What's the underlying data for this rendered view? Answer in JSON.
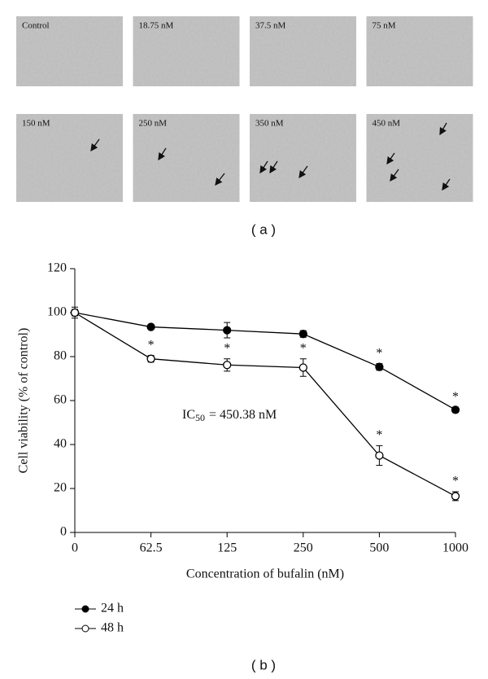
{
  "panel_a": {
    "label": "( a )",
    "images": [
      "Control",
      "18.75 nM",
      "37.5 nM",
      "75 nM",
      "150 nM",
      "250 nM",
      "350 nM",
      "450 nM"
    ]
  },
  "chart_data": {
    "type": "line",
    "panel_label": "( b )",
    "x_label": "Concentration of bufalin (nM)",
    "y_label": "Cell viability (% of control)",
    "annotation": {
      "main": "IC",
      "sub": "50",
      "rest": "= 450.38 nM"
    },
    "categories": [
      "0",
      "62.5",
      "125",
      "250",
      "500",
      "1000"
    ],
    "ylim": [
      0,
      120
    ],
    "yticks": [
      0,
      20,
      40,
      60,
      80,
      100,
      120
    ],
    "grid": false,
    "series": [
      {
        "name": "24 h",
        "color": "#000000",
        "marker_fill": "#000000",
        "values": [
          100,
          93.5,
          92,
          90.3,
          75.3,
          55.8
        ],
        "errors": [
          1.5,
          1,
          3.5,
          1.5,
          1.5,
          1.2
        ],
        "significance": [
          null,
          null,
          null,
          null,
          "*",
          "*"
        ]
      },
      {
        "name": "48 h",
        "color": "#000000",
        "marker_fill": "#ffffff",
        "values": [
          100,
          79,
          76.2,
          75,
          35,
          16.5
        ],
        "errors": [
          2.5,
          1.5,
          2.8,
          4,
          4.5,
          2
        ],
        "significance": [
          null,
          "*",
          "*",
          "*",
          "*",
          "*"
        ]
      }
    ]
  }
}
